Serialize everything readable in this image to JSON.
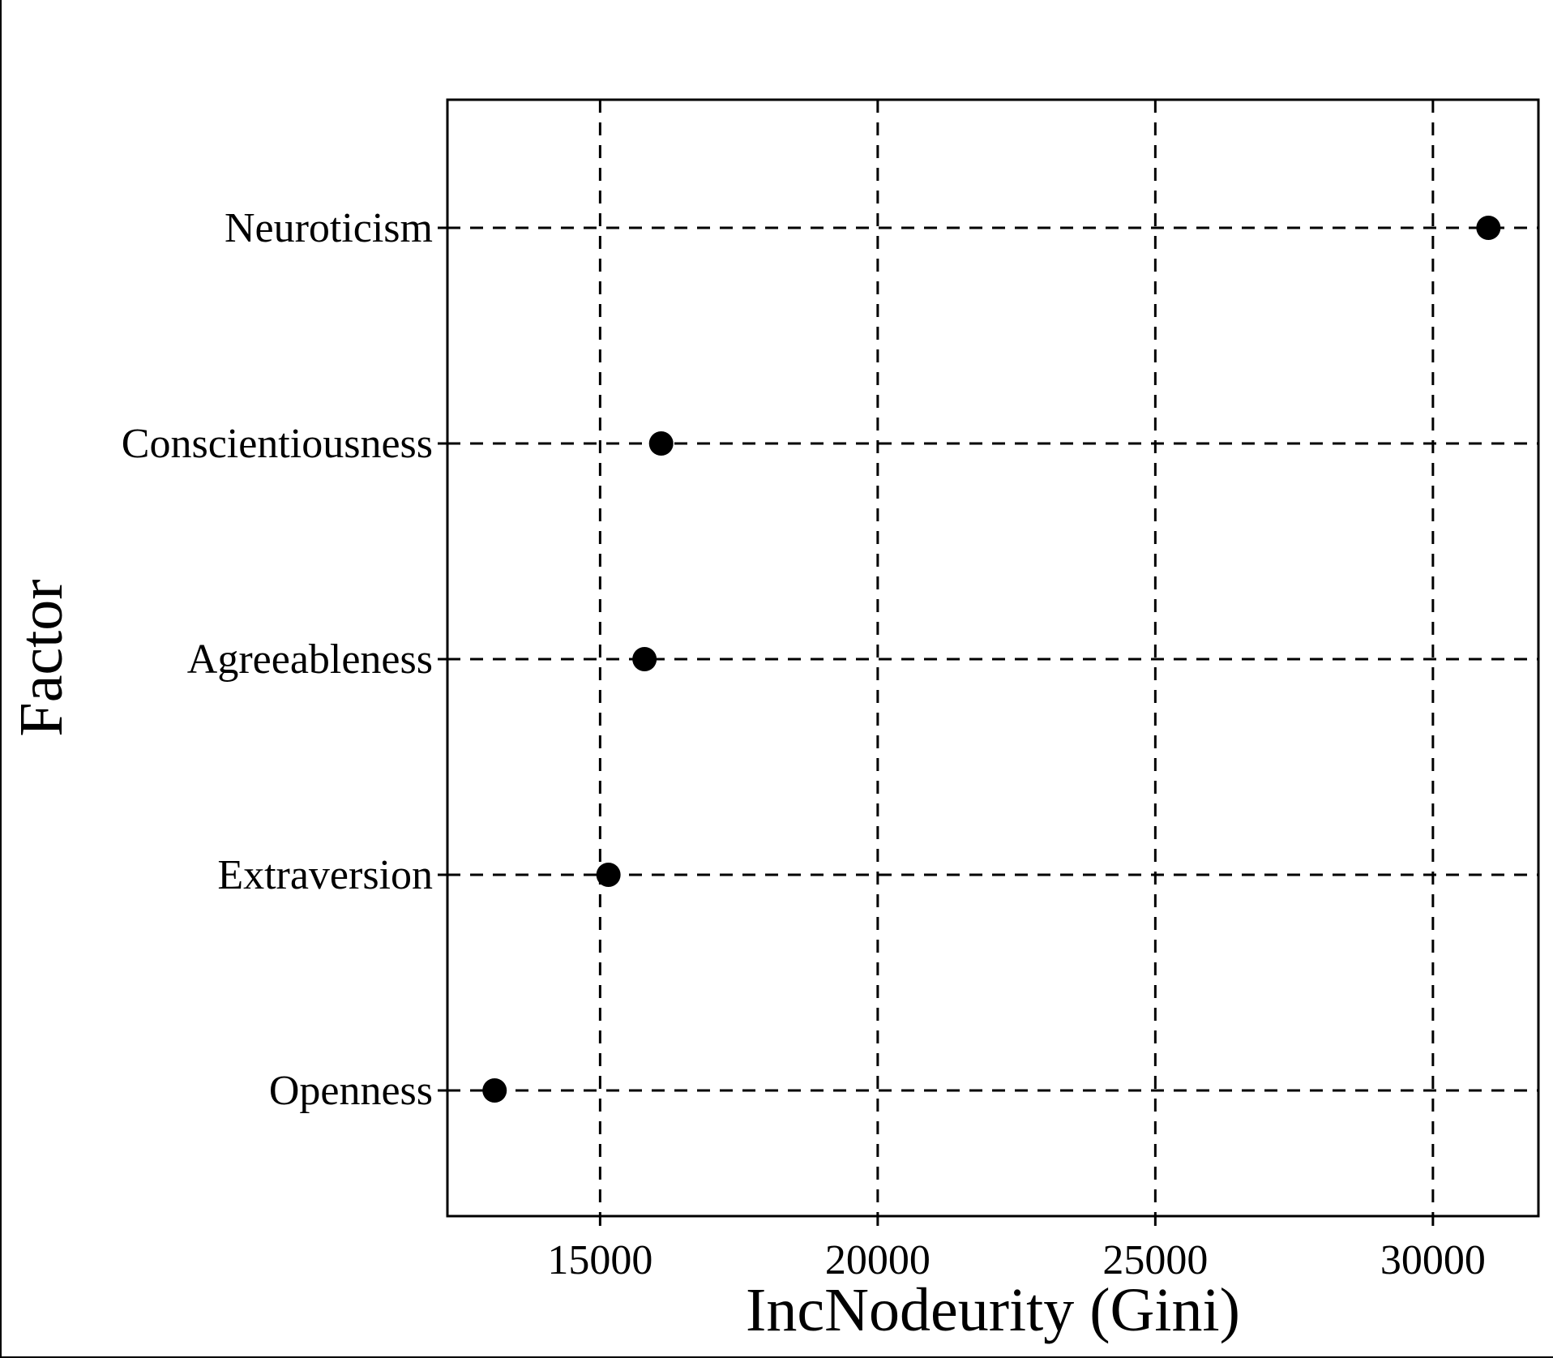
{
  "chart_data": {
    "type": "scatter",
    "title": "",
    "xlabel": "IncNodeurity (Gini)",
    "ylabel": "Factor",
    "categories": [
      "Neuroticism",
      "Conscientiousness",
      "Agreeableness",
      "Extraversion",
      "Openness"
    ],
    "values": [
      31000,
      16100,
      15800,
      15150,
      13100
    ],
    "xlim": [
      12250,
      31900
    ],
    "xticks": [
      15000,
      20000,
      25000,
      30000
    ],
    "xtick_labels": [
      "15000",
      "20000",
      "25000",
      "30000"
    ],
    "grid": true,
    "grid_style": "dashed",
    "legend": "none",
    "marker_color": "#000000"
  }
}
